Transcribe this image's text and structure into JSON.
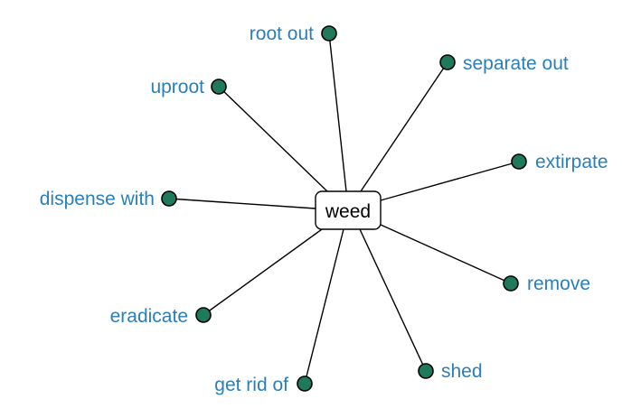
{
  "center": {
    "label": "weed"
  },
  "leaves": [
    {
      "id": "root-out",
      "label": "root out"
    },
    {
      "id": "separate-out",
      "label": "separate out"
    },
    {
      "id": "uproot",
      "label": "uproot"
    },
    {
      "id": "extirpate",
      "label": "extirpate"
    },
    {
      "id": "dispense-with",
      "label": "dispense with"
    },
    {
      "id": "remove",
      "label": "remove"
    },
    {
      "id": "eradicate",
      "label": "eradicate"
    },
    {
      "id": "shed",
      "label": "shed"
    },
    {
      "id": "get-rid-of",
      "label": "get rid of"
    }
  ],
  "colors": {
    "node_fill": "#1f7a5c",
    "label_text": "#2a7fba",
    "edge": "#000000",
    "center_text": "#000000"
  }
}
